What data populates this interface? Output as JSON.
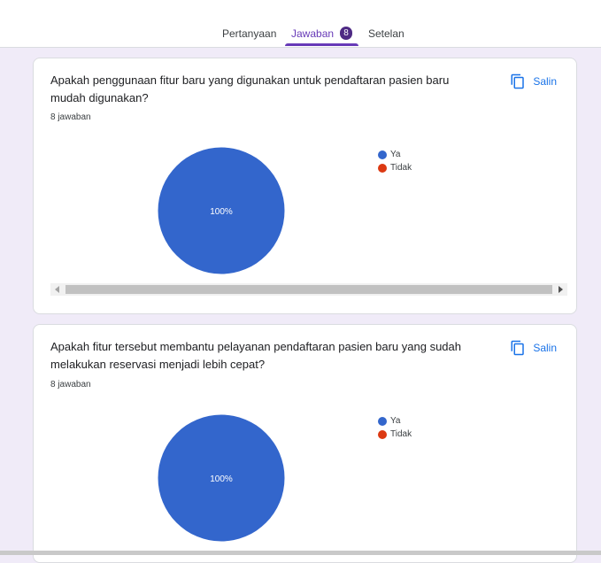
{
  "tabs": {
    "questions": "Pertanyaan",
    "responses": "Jawaban",
    "responses_count": "8",
    "settings": "Setelan"
  },
  "cards": [
    {
      "question": "Apakah penggunaan fitur baru yang digunakan untuk pendaftaran pasien baru mudah digunakan?",
      "responses_count": "8 jawaban",
      "copy_label": "Salin",
      "chart_data": {
        "type": "pie",
        "categories": [
          "Ya",
          "Tidak"
        ],
        "values": [
          100,
          0
        ],
        "slice_labels": [
          "100%"
        ],
        "colors": [
          "#3366cc",
          "#dc3912"
        ]
      }
    },
    {
      "question": "Apakah fitur tersebut membantu pelayanan pendaftaran pasien baru yang sudah melakukan reservasi menjadi lebih cepat?",
      "responses_count": "8 jawaban",
      "copy_label": "Salin",
      "chart_data": {
        "type": "pie",
        "categories": [
          "Ya",
          "Tidak"
        ],
        "values": [
          100,
          0
        ],
        "slice_labels": [
          "100%"
        ],
        "colors": [
          "#3366cc",
          "#dc3912"
        ]
      }
    }
  ]
}
